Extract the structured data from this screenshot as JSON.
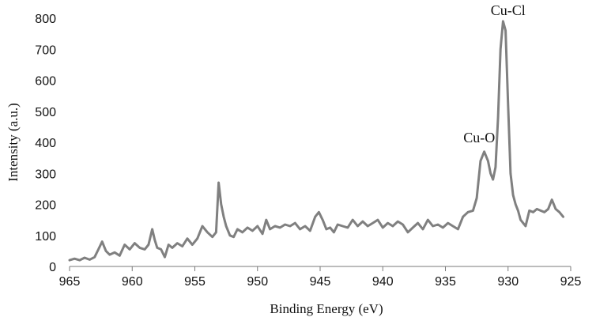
{
  "chart_data": {
    "type": "line",
    "title": "",
    "xlabel": "Binding Energy (eV)",
    "ylabel": "Intensity (a.u.)",
    "xlim": [
      965,
      925
    ],
    "ylim": [
      0,
      800
    ],
    "x_reversed": true,
    "x_ticks": [
      965,
      960,
      955,
      950,
      945,
      940,
      935,
      930,
      925
    ],
    "y_ticks": [
      0,
      100,
      200,
      300,
      400,
      500,
      600,
      700,
      800
    ],
    "grid": false,
    "legend": "none",
    "colors": {
      "series": "#808080",
      "axis": "#7a7a7a",
      "text": "#111111"
    },
    "annotations": [
      {
        "text": "Cu-O",
        "x": 932.3,
        "y": 400
      },
      {
        "text": "Cu-Cl",
        "x": 930.0,
        "y": 810
      }
    ],
    "series": [
      {
        "name": "",
        "x": [
          965.0,
          964.6,
          964.2,
          963.8,
          963.4,
          963.0,
          962.7,
          962.4,
          962.1,
          961.8,
          961.4,
          961.0,
          960.6,
          960.2,
          959.8,
          959.4,
          959.0,
          958.7,
          958.4,
          958.2,
          958.0,
          957.7,
          957.4,
          957.1,
          956.8,
          956.4,
          956.0,
          955.6,
          955.2,
          954.8,
          954.4,
          954.0,
          953.6,
          953.3,
          953.1,
          952.9,
          952.7,
          952.5,
          952.2,
          951.9,
          951.6,
          951.2,
          950.8,
          950.4,
          950.0,
          949.6,
          949.3,
          949.0,
          948.6,
          948.2,
          947.8,
          947.4,
          947.0,
          946.6,
          946.2,
          945.8,
          945.4,
          945.1,
          944.8,
          944.5,
          944.2,
          943.9,
          943.6,
          943.2,
          942.8,
          942.4,
          942.0,
          941.6,
          941.2,
          940.8,
          940.4,
          940.0,
          939.6,
          939.2,
          938.8,
          938.4,
          938.0,
          937.6,
          937.2,
          936.8,
          936.4,
          936.0,
          935.6,
          935.2,
          934.8,
          934.4,
          934.0,
          933.6,
          933.2,
          932.8,
          932.5,
          932.2,
          931.9,
          931.6,
          931.4,
          931.2,
          931.0,
          930.8,
          930.6,
          930.4,
          930.2,
          930.0,
          929.8,
          929.6,
          929.4,
          929.2,
          929.0,
          928.8,
          928.6,
          928.3,
          928.0,
          927.7,
          927.4,
          927.1,
          926.8,
          926.5,
          926.2,
          925.9,
          925.6
        ],
        "y": [
          20,
          25,
          20,
          28,
          22,
          30,
          55,
          80,
          50,
          38,
          45,
          35,
          70,
          55,
          75,
          60,
          55,
          70,
          120,
          85,
          60,
          55,
          30,
          70,
          60,
          75,
          65,
          90,
          70,
          90,
          130,
          110,
          95,
          110,
          270,
          200,
          160,
          130,
          100,
          95,
          120,
          110,
          125,
          115,
          130,
          105,
          150,
          120,
          130,
          125,
          135,
          130,
          140,
          120,
          130,
          115,
          160,
          175,
          150,
          120,
          125,
          110,
          135,
          130,
          125,
          150,
          130,
          145,
          130,
          140,
          150,
          125,
          140,
          130,
          145,
          135,
          110,
          125,
          140,
          120,
          150,
          130,
          135,
          125,
          140,
          130,
          120,
          160,
          175,
          180,
          220,
          340,
          370,
          340,
          300,
          280,
          320,
          480,
          700,
          790,
          760,
          520,
          300,
          230,
          200,
          180,
          150,
          140,
          130,
          180,
          175,
          185,
          180,
          175,
          185,
          215,
          185,
          175,
          160
        ]
      }
    ]
  }
}
